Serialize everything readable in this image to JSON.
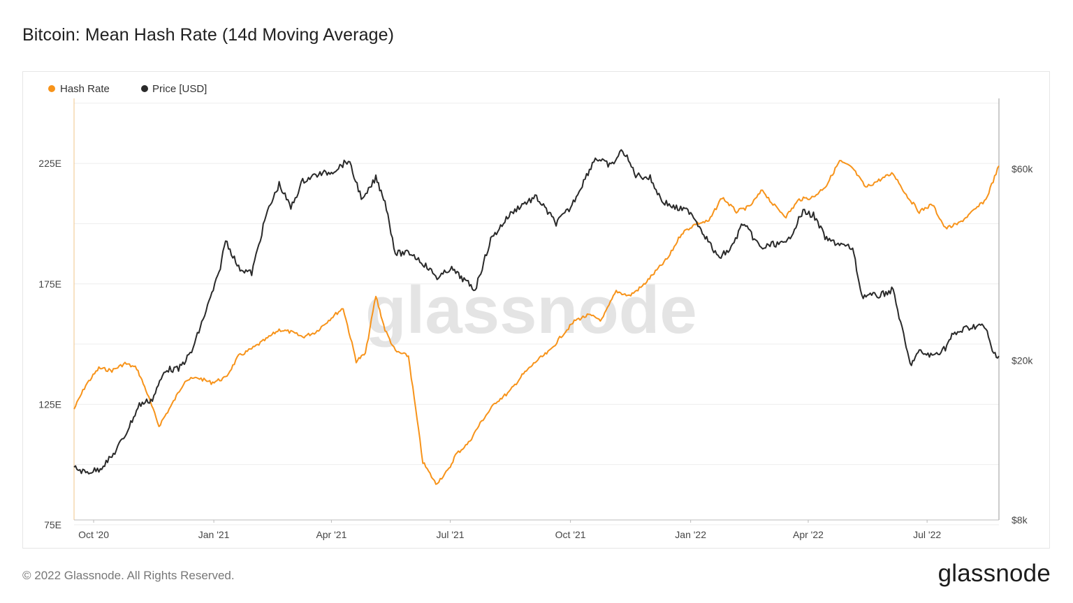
{
  "title": "Bitcoin: Mean Hash Rate (14d Moving Average)",
  "footer": {
    "copyright": "© 2022 Glassnode. All Rights Reserved.",
    "logo": "glassnode"
  },
  "watermark": "glassnode",
  "colors": {
    "hash_rate": "#f7931a",
    "price": "#2a2a2a",
    "grid": "#eeeeee",
    "axis": "#bbbbbb"
  },
  "chart_data": {
    "type": "line",
    "title": "Bitcoin: Mean Hash Rate (14d Moving Average)",
    "legend_position": "top-left",
    "grid": true,
    "x_ticks": [
      "Oct '20",
      "Jan '21",
      "Apr '21",
      "Jul '21",
      "Oct '21",
      "Jan '22",
      "Apr '22",
      "Jul '22"
    ],
    "x_tick_dates": [
      "2020-10-01",
      "2021-01-01",
      "2021-04-01",
      "2021-07-01",
      "2021-10-01",
      "2022-01-01",
      "2022-04-01",
      "2022-07-01"
    ],
    "xlim": [
      "2020-09-16",
      "2022-08-25"
    ],
    "y_left": {
      "label": "",
      "ticks": [
        "75E",
        "125E",
        "175E",
        "225E"
      ],
      "tick_values": [
        75,
        125,
        175,
        225
      ],
      "lim": [
        77,
        252
      ]
    },
    "y_right": {
      "label": "",
      "scale": "log",
      "ticks": [
        "$8k",
        "$20k",
        "$60k"
      ],
      "tick_values": [
        8000,
        20000,
        60000
      ],
      "lim": [
        8000,
        90000
      ]
    },
    "series": [
      {
        "name": "Hash Rate",
        "axis": "left",
        "x": [
          "2020-09-16",
          "2020-09-25",
          "2020-10-05",
          "2020-10-15",
          "2020-10-25",
          "2020-11-03",
          "2020-11-10",
          "2020-11-20",
          "2020-11-30",
          "2020-12-10",
          "2020-12-20",
          "2020-12-30",
          "2021-01-10",
          "2021-01-20",
          "2021-01-30",
          "2021-02-10",
          "2021-02-20",
          "2021-03-01",
          "2021-03-10",
          "2021-03-20",
          "2021-04-01",
          "2021-04-10",
          "2021-04-20",
          "2021-04-27",
          "2021-05-05",
          "2021-05-12",
          "2021-05-20",
          "2021-05-30",
          "2021-06-10",
          "2021-06-20",
          "2021-06-30",
          "2021-07-05",
          "2021-07-15",
          "2021-07-25",
          "2021-08-05",
          "2021-08-15",
          "2021-08-25",
          "2021-09-05",
          "2021-09-15",
          "2021-09-25",
          "2021-10-05",
          "2021-10-15",
          "2021-10-25",
          "2021-11-05",
          "2021-11-15",
          "2021-11-25",
          "2021-12-05",
          "2021-12-15",
          "2021-12-25",
          "2022-01-05",
          "2022-01-15",
          "2022-01-25",
          "2022-02-05",
          "2022-02-15",
          "2022-02-25",
          "2022-03-05",
          "2022-03-15",
          "2022-03-25",
          "2022-04-05",
          "2022-04-15",
          "2022-04-25",
          "2022-05-05",
          "2022-05-15",
          "2022-05-25",
          "2022-06-05",
          "2022-06-15",
          "2022-06-25",
          "2022-07-05",
          "2022-07-15",
          "2022-07-25",
          "2022-08-05",
          "2022-08-15",
          "2022-08-25"
        ],
        "values": [
          123,
          133,
          140,
          139,
          142,
          140,
          131,
          116,
          125,
          135,
          136,
          134,
          136,
          145,
          148,
          152,
          156,
          155,
          153,
          155,
          161,
          165,
          143,
          146,
          170,
          156,
          147,
          145,
          101,
          92,
          98,
          104,
          109,
          118,
          126,
          130,
          137,
          143,
          147,
          154,
          160,
          162,
          160,
          172,
          170,
          174,
          180,
          186,
          196,
          200,
          201,
          211,
          205,
          207,
          214,
          208,
          203,
          210,
          211,
          216,
          226,
          223,
          215,
          218,
          221,
          212,
          205,
          208,
          198,
          200,
          205,
          210,
          224
        ]
      },
      {
        "name": "Price [USD]",
        "axis": "right",
        "x": [
          "2020-09-16",
          "2020-09-25",
          "2020-10-05",
          "2020-10-15",
          "2020-10-25",
          "2020-11-05",
          "2020-11-15",
          "2020-11-25",
          "2020-12-05",
          "2020-12-15",
          "2020-12-25",
          "2021-01-05",
          "2021-01-10",
          "2021-01-20",
          "2021-01-30",
          "2021-02-10",
          "2021-02-20",
          "2021-03-01",
          "2021-03-10",
          "2021-03-20",
          "2021-04-01",
          "2021-04-14",
          "2021-04-25",
          "2021-05-05",
          "2021-05-12",
          "2021-05-20",
          "2021-06-01",
          "2021-06-10",
          "2021-06-22",
          "2021-07-01",
          "2021-07-20",
          "2021-08-01",
          "2021-08-15",
          "2021-08-25",
          "2021-09-05",
          "2021-09-20",
          "2021-10-01",
          "2021-10-10",
          "2021-10-20",
          "2021-11-01",
          "2021-11-10",
          "2021-11-20",
          "2021-12-01",
          "2021-12-10",
          "2021-12-20",
          "2022-01-01",
          "2022-01-10",
          "2022-01-22",
          "2022-02-01",
          "2022-02-10",
          "2022-02-24",
          "2022-03-05",
          "2022-03-15",
          "2022-03-28",
          "2022-04-05",
          "2022-04-15",
          "2022-04-25",
          "2022-05-05",
          "2022-05-12",
          "2022-05-25",
          "2022-06-05",
          "2022-06-13",
          "2022-06-18",
          "2022-06-25",
          "2022-07-05",
          "2022-07-15",
          "2022-07-20",
          "2022-07-30",
          "2022-08-10",
          "2022-08-15",
          "2022-08-20",
          "2022-08-25"
        ],
        "values": [
          10800,
          10500,
          10700,
          11500,
          13000,
          15500,
          16000,
          19000,
          19000,
          21000,
          26000,
          33000,
          40000,
          34000,
          33000,
          46000,
          55000,
          48000,
          56000,
          58000,
          59000,
          63000,
          50000,
          57000,
          50000,
          37000,
          37000,
          35000,
          32000,
          34000,
          30000,
          40000,
          46000,
          49000,
          51000,
          44000,
          48000,
          55000,
          64000,
          61000,
          67000,
          58000,
          57000,
          50000,
          48000,
          47000,
          42000,
          36000,
          38000,
          44000,
          38000,
          39000,
          39000,
          47000,
          46000,
          40000,
          39000,
          38000,
          29000,
          29000,
          30000,
          23000,
          19500,
          21000,
          20500,
          21500,
          23000,
          24000,
          24500,
          24000,
          21000,
          20500
        ]
      }
    ]
  }
}
